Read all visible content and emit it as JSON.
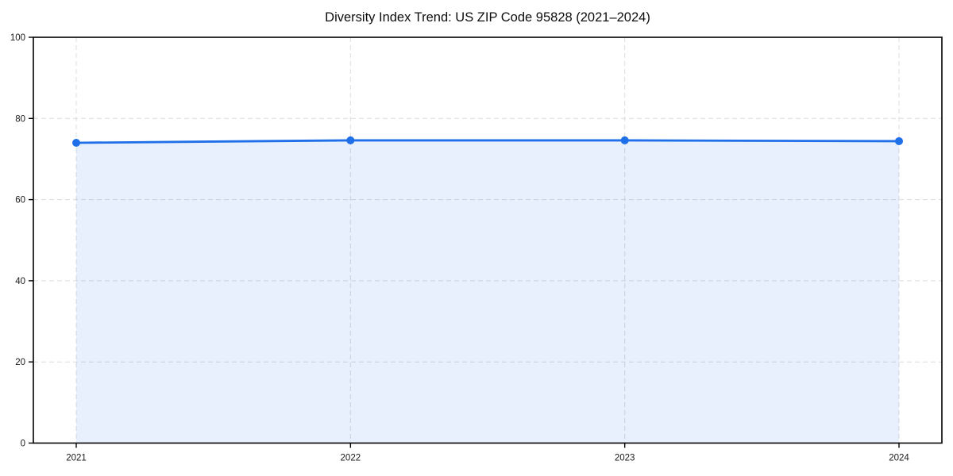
{
  "figure": {
    "background": "#ffffff"
  },
  "chart_data": {
    "type": "line",
    "title": "Diversity Index Trend: US ZIP Code 95828 (2021–2024)",
    "categories": [
      "2021",
      "2022",
      "2023",
      "2024"
    ],
    "series": [
      {
        "name": "Diversity Index",
        "values": [
          74.0,
          74.6,
          74.6,
          74.4
        ]
      }
    ],
    "xlabel": "",
    "ylabel": "",
    "ylim": [
      0,
      100
    ],
    "yticks": [
      0,
      20,
      40,
      60,
      80,
      100
    ],
    "grid": true,
    "grid_style": "dashed",
    "legend_position": "none",
    "area_fill": true,
    "colors": {
      "line": "#1f6fe8",
      "marker": "#1f6fe8",
      "fill": "#1f6fe8",
      "fill_opacity": 0.1,
      "grid": "#dcdcdc",
      "spine": "#000000",
      "tick": "#000000",
      "title_text": "#0d0d0d",
      "tick_text": "#191919"
    }
  }
}
